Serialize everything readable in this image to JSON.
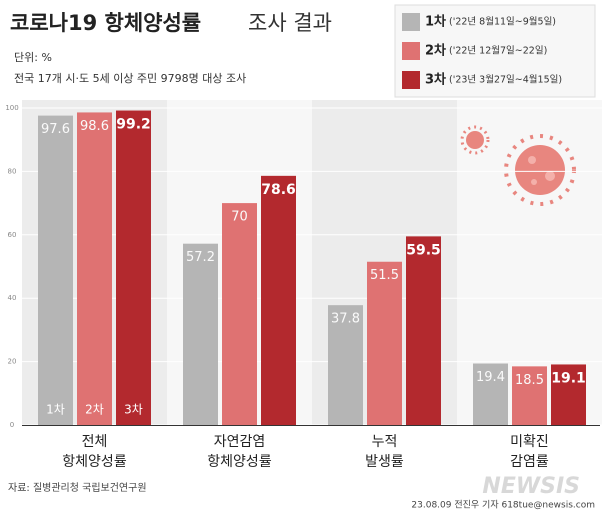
{
  "chart_data": {
    "type": "bar",
    "title": "코로나19 항체양성률",
    "title_suffix": "조사 결과",
    "unit_note": "단위: %",
    "subtitle": "전국 17개 시·도 5세 이상 주민 9798명 대상 조사",
    "categories": [
      "전체\n항체양성률",
      "자연감염\n항체양성률",
      "누적\n발생률",
      "미확진\n감염률"
    ],
    "series": [
      {
        "name": "1차",
        "period": "('22년 8월11일~9월5일)",
        "color": "#b5b5b5",
        "values": [
          97.6,
          57.2,
          37.8,
          19.4
        ]
      },
      {
        "name": "2차",
        "period": "('22년 12월7일~22일)",
        "color": "#df7272",
        "values": [
          98.6,
          70,
          51.5,
          18.5
        ]
      },
      {
        "name": "3차",
        "period": "('23년 3월27일~4월15일)",
        "color": "#b3292e",
        "values": [
          99.2,
          78.6,
          59.5,
          19.1
        ]
      }
    ],
    "ylim": [
      0,
      100
    ],
    "yticks": [
      0,
      20,
      40,
      60,
      80,
      100
    ],
    "grid": true,
    "source": "자료: 질병관리청 국립보건연구원",
    "credit": "23.08.09 전진우 기자 618tue@newsis.com",
    "logo": "NEWSIS"
  }
}
